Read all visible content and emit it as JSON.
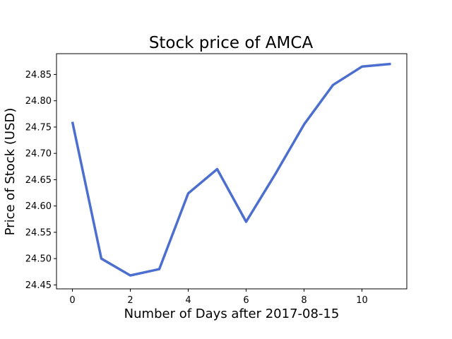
{
  "chart_data": {
    "type": "line",
    "title": "Stock price of AMCA",
    "xlabel": "Number of Days after 2017-08-15",
    "ylabel": "Price of Stock (USD)",
    "x": [
      0,
      1,
      2,
      3,
      4,
      5,
      6,
      7,
      8,
      9,
      10,
      11
    ],
    "series": [
      {
        "values": [
          24.76,
          24.5,
          24.468,
          24.48,
          24.624,
          24.67,
          24.57,
          24.66,
          24.755,
          24.83,
          24.865,
          24.87
        ],
        "color": "#4c6fcf"
      }
    ],
    "xlim": [
      -0.55,
      11.55
    ],
    "ylim": [
      24.4425,
      24.8895
    ],
    "xticks": [
      0,
      2,
      4,
      6,
      8,
      10
    ],
    "xtick_labels": [
      "0",
      "2",
      "4",
      "6",
      "8",
      "10"
    ],
    "yticks": [
      24.45,
      24.5,
      24.55,
      24.6,
      24.65,
      24.7,
      24.75,
      24.8,
      24.85
    ],
    "ytick_labels": [
      "24.45",
      "24.50",
      "24.55",
      "24.60",
      "24.65",
      "24.70",
      "24.75",
      "24.80",
      "24.85"
    ],
    "grid": false,
    "legend": false
  }
}
